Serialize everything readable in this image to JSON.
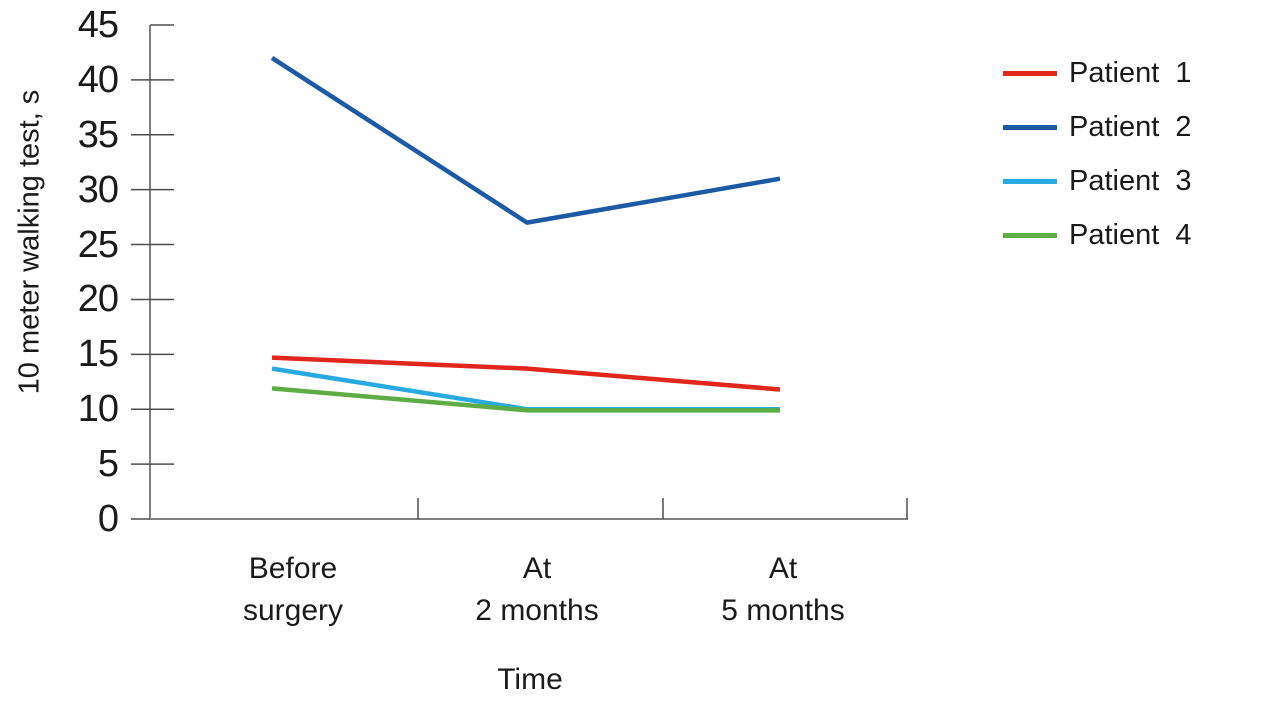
{
  "chart_data": {
    "type": "line",
    "title": "",
    "xlabel": "Time",
    "ylabel": "10 meter walking test, s",
    "ylim": [
      0,
      45
    ],
    "yticks": [
      0,
      5,
      10,
      15,
      20,
      25,
      30,
      35,
      40,
      45
    ],
    "grid": false,
    "legend_position": "right",
    "categories": [
      [
        "Before",
        "surgery"
      ],
      [
        "At",
        "2 months"
      ],
      [
        "At",
        "5 months"
      ]
    ],
    "series": [
      {
        "name": "Patient  1",
        "color": "#e2261c",
        "values": [
          14.7,
          13.7,
          11.8
        ]
      },
      {
        "name": "Patient  2",
        "color": "#1c5aa5",
        "values": [
          42,
          27,
          31
        ]
      },
      {
        "name": "Patient  3",
        "color": "#27aae1",
        "values": [
          13.7,
          10,
          10
        ]
      },
      {
        "name": "Patient  4",
        "color": "#5dad44",
        "values": [
          11.9,
          9.9,
          9.9
        ]
      }
    ],
    "colors": {
      "axis": "#7f7f7f",
      "tick": "#4d4d4d",
      "text": "#1a1a1a",
      "background": "#ffffff"
    }
  }
}
